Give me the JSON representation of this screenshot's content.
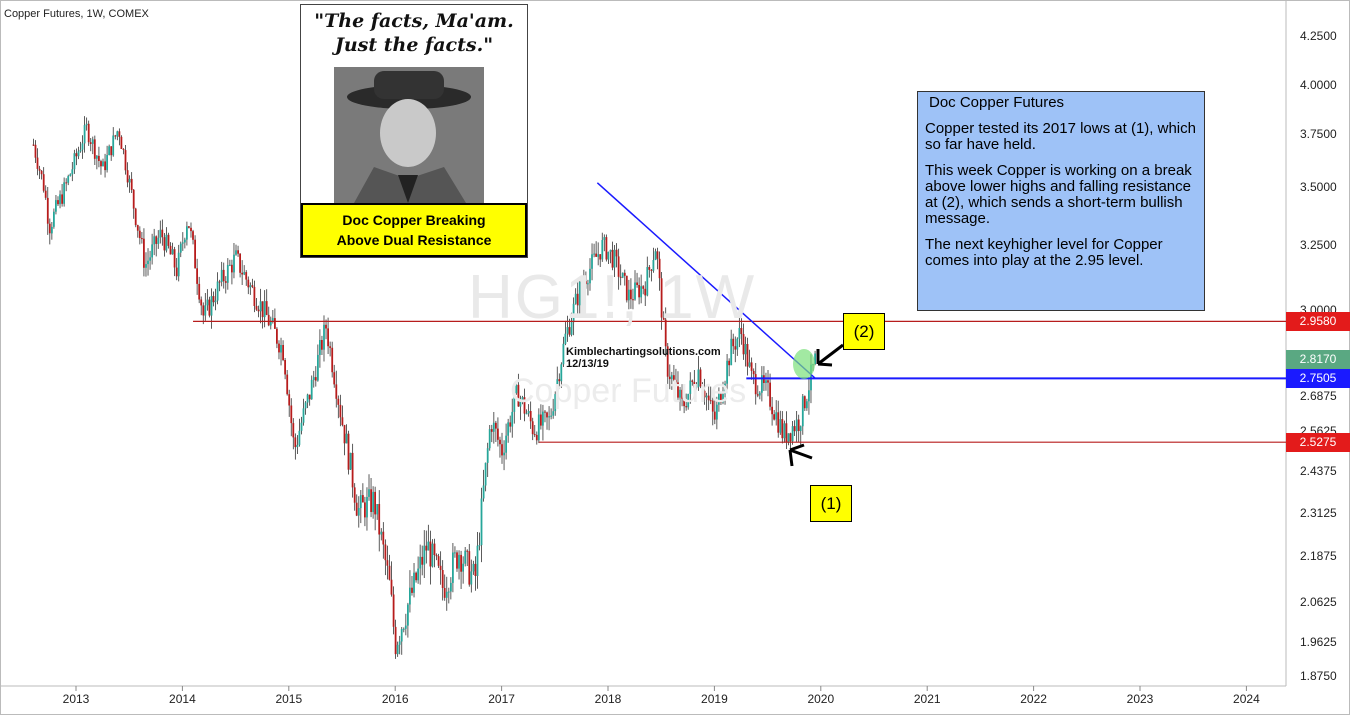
{
  "chart_header": "Copper Futures, 1W, COMEX",
  "watermark": {
    "symbol": "HG1!, 1W",
    "name": "Copper Futures"
  },
  "meme": {
    "quote_line1": "\"The facts, Ma'am.",
    "quote_line2": "Just the facts.\"",
    "banner_line1": "Doc Copper Breaking",
    "banner_line2": "Above Dual Resistance"
  },
  "note": {
    "title": "Doc Copper Futures",
    "p1": "Copper tested its 2017 lows at (1), which so far have held.",
    "p2": "This week Copper is working on a break above lower highs and falling resistance at (2), which sends a short-term bullish message.",
    "p3": "The next keyhigher level for Copper comes into play at the 2.95 level."
  },
  "stamp": {
    "site": "Kimblechartingsolutions.com",
    "date": "12/13/19"
  },
  "callouts": {
    "c1": "(1)",
    "c2": "(2)"
  },
  "colors": {
    "up": "#26a69a",
    "down": "#b71c1c",
    "trend": "#1a1aff",
    "red_line": "#b71c1c",
    "callout": "#ffff00",
    "note_bg": "#9ec2f7"
  },
  "chart_data": {
    "type": "candlestick",
    "title": "Copper Futures, 1W, COMEX",
    "x_axis": {
      "ticks": [
        "2013",
        "2014",
        "2015",
        "2016",
        "2017",
        "2018",
        "2019",
        "2020",
        "2021",
        "2022",
        "2023",
        "2024"
      ]
    },
    "y_axis": {
      "ticks": [
        "1.8750",
        "1.9625",
        "2.0625",
        "2.1875",
        "2.3125",
        "2.4375",
        "2.5625",
        "2.6875",
        "2.8125",
        "3.0000",
        "3.2500",
        "3.5000",
        "3.7500",
        "4.0000",
        "4.2500"
      ],
      "ylim": [
        1.875,
        4.25
      ]
    },
    "weekly_close_waypoints": [
      {
        "x": 2012.6,
        "y": 3.7
      },
      {
        "x": 2012.7,
        "y": 3.5
      },
      {
        "x": 2012.75,
        "y": 3.33
      },
      {
        "x": 2012.9,
        "y": 3.5
      },
      {
        "x": 2013.1,
        "y": 3.78
      },
      {
        "x": 2013.25,
        "y": 3.58
      },
      {
        "x": 2013.4,
        "y": 3.78
      },
      {
        "x": 2013.55,
        "y": 3.4
      },
      {
        "x": 2013.65,
        "y": 3.17
      },
      {
        "x": 2013.8,
        "y": 3.3
      },
      {
        "x": 2013.95,
        "y": 3.15
      },
      {
        "x": 2014.05,
        "y": 3.37
      },
      {
        "x": 2014.2,
        "y": 2.97
      },
      {
        "x": 2014.35,
        "y": 3.1
      },
      {
        "x": 2014.5,
        "y": 3.2
      },
      {
        "x": 2014.65,
        "y": 3.08
      },
      {
        "x": 2014.8,
        "y": 2.97
      },
      {
        "x": 2014.95,
        "y": 2.85
      },
      {
        "x": 2015.05,
        "y": 2.5
      },
      {
        "x": 2015.2,
        "y": 2.7
      },
      {
        "x": 2015.35,
        "y": 2.94
      },
      {
        "x": 2015.5,
        "y": 2.6
      },
      {
        "x": 2015.65,
        "y": 2.32
      },
      {
        "x": 2015.8,
        "y": 2.35
      },
      {
        "x": 2015.95,
        "y": 2.1
      },
      {
        "x": 2016.0,
        "y": 1.96
      },
      {
        "x": 2016.15,
        "y": 2.08
      },
      {
        "x": 2016.3,
        "y": 2.22
      },
      {
        "x": 2016.45,
        "y": 2.1
      },
      {
        "x": 2016.6,
        "y": 2.2
      },
      {
        "x": 2016.75,
        "y": 2.12
      },
      {
        "x": 2016.9,
        "y": 2.6
      },
      {
        "x": 2017.0,
        "y": 2.5
      },
      {
        "x": 2017.15,
        "y": 2.7
      },
      {
        "x": 2017.3,
        "y": 2.57
      },
      {
        "x": 2017.45,
        "y": 2.6
      },
      {
        "x": 2017.6,
        "y": 2.9
      },
      {
        "x": 2017.75,
        "y": 3.1
      },
      {
        "x": 2017.95,
        "y": 3.25
      },
      {
        "x": 2018.05,
        "y": 3.2
      },
      {
        "x": 2018.2,
        "y": 3.05
      },
      {
        "x": 2018.35,
        "y": 3.1
      },
      {
        "x": 2018.45,
        "y": 3.25
      },
      {
        "x": 2018.55,
        "y": 2.8
      },
      {
        "x": 2018.7,
        "y": 2.65
      },
      {
        "x": 2018.85,
        "y": 2.78
      },
      {
        "x": 2019.0,
        "y": 2.6
      },
      {
        "x": 2019.15,
        "y": 2.85
      },
      {
        "x": 2019.25,
        "y": 2.92
      },
      {
        "x": 2019.35,
        "y": 2.75
      },
      {
        "x": 2019.5,
        "y": 2.7
      },
      {
        "x": 2019.65,
        "y": 2.55
      },
      {
        "x": 2019.8,
        "y": 2.6
      },
      {
        "x": 2019.95,
        "y": 2.817
      }
    ],
    "horizontal_levels": [
      {
        "label": "2.9580",
        "y": 2.958,
        "color": "red"
      },
      {
        "label": "2.7505",
        "y": 2.7505,
        "color": "blue"
      },
      {
        "label": "2.5275",
        "y": 2.5275,
        "color": "red"
      }
    ],
    "last_price": {
      "label": "2.8170",
      "y": 2.817
    },
    "trendline": [
      {
        "x": 2017.9,
        "y": 3.52
      },
      {
        "x": 2019.95,
        "y": 2.75
      }
    ]
  }
}
